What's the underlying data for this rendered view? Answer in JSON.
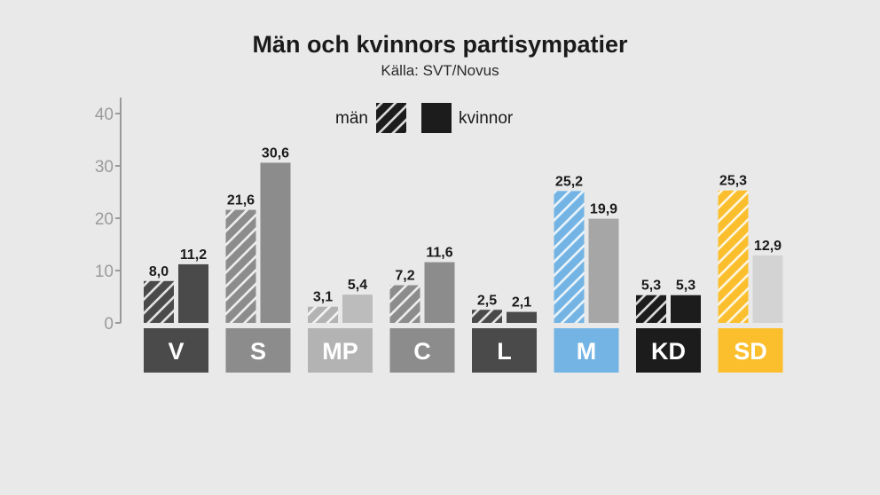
{
  "chart_data": {
    "type": "bar",
    "title": "Män och kvinnors partisympatier",
    "subtitle": "Källa: SVT/Novus",
    "ylim": [
      0,
      40
    ],
    "yticks": [
      "0",
      "10",
      "20",
      "30",
      "40"
    ],
    "grid": false,
    "legend": "top-center",
    "categories": [
      "V",
      "S",
      "MP",
      "C",
      "L",
      "M",
      "KD",
      "SD"
    ],
    "category_colors": [
      "#4a4a4a",
      "#8c8c8c",
      "#b3b3b3",
      "#8c8c8c",
      "#4a4a4a",
      "#74b4e4",
      "#1c1c1c",
      "#fbbf2e"
    ],
    "women_colors": [
      "#4a4a4a",
      "#8c8c8c",
      "#bcbcbc",
      "#8c8c8c",
      "#4a4a4a",
      "#a6a6a6",
      "#1c1c1c",
      "#d3d3d3"
    ],
    "series": [
      {
        "name": "män",
        "pattern": "hatched",
        "values": [
          8.0,
          21.6,
          3.1,
          7.2,
          2.5,
          25.2,
          5.3,
          25.3
        ],
        "labels": [
          "8,0",
          "21,6",
          "3,1",
          "7,2",
          "2,5",
          "25,2",
          "5,3",
          "25,3"
        ]
      },
      {
        "name": "kvinnor",
        "pattern": "solid",
        "values": [
          11.2,
          30.6,
          5.4,
          11.6,
          2.1,
          19.9,
          5.3,
          12.9
        ],
        "labels": [
          "11,2",
          "30,6",
          "5,4",
          "11,6",
          "2,1",
          "19,9",
          "5,3",
          "12,9"
        ]
      }
    ]
  },
  "colors": {
    "background": "#e9e9e9",
    "axis": "#9a9a9a",
    "legend_swatch": "#1c1c1c"
  }
}
